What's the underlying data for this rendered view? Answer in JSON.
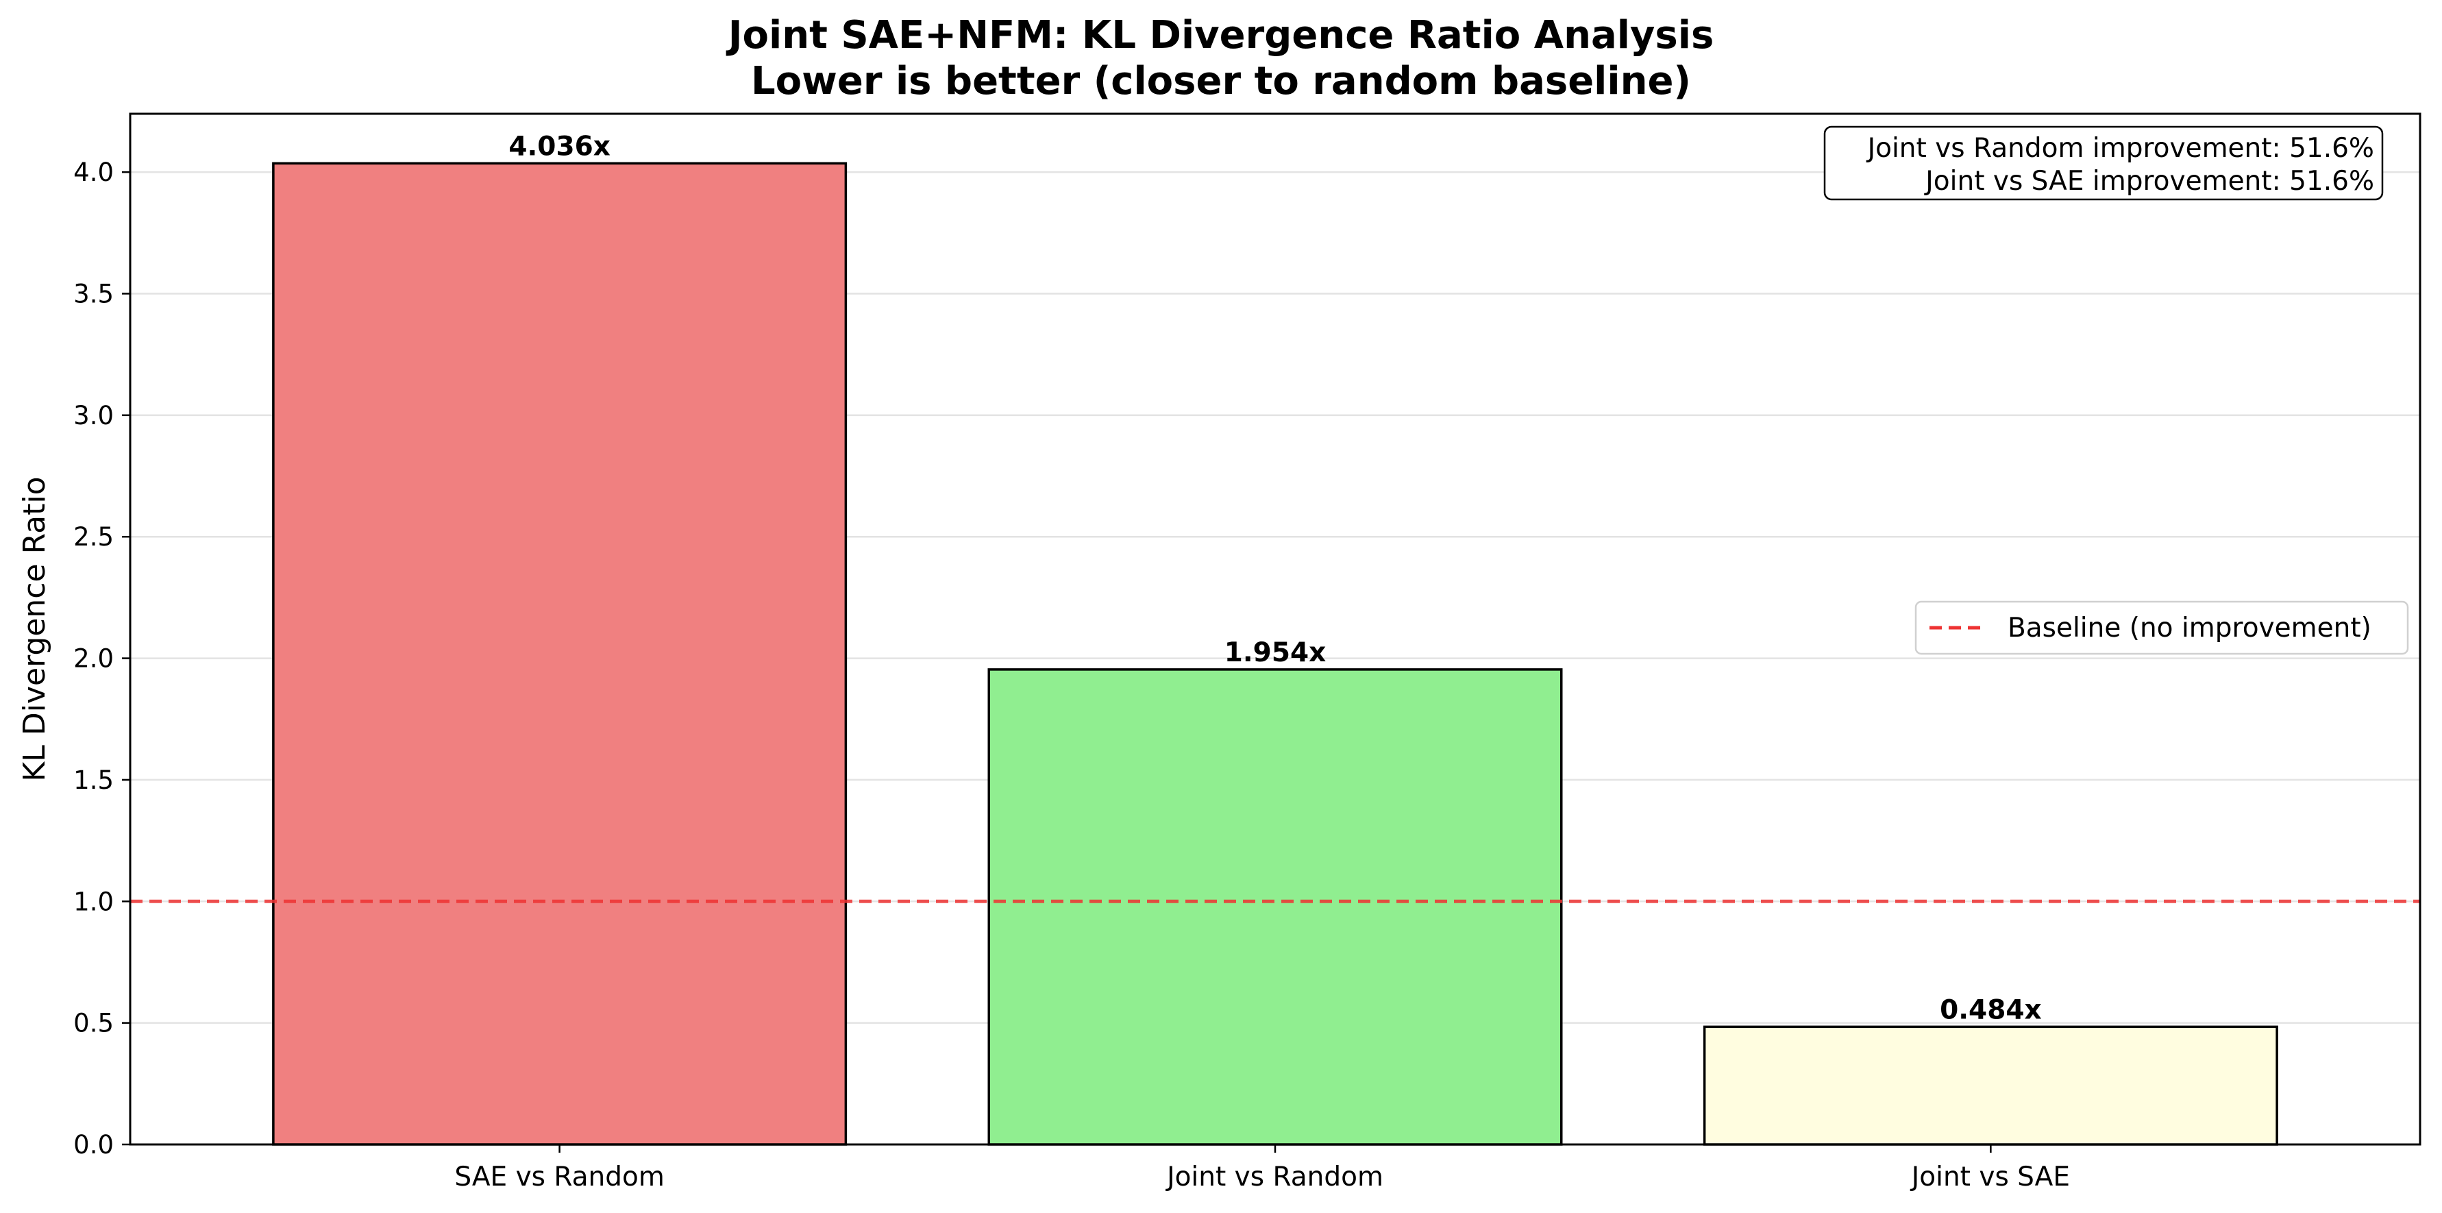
{
  "chart_data": {
    "type": "bar",
    "title": "Joint SAE+NFM: KL Divergence Ratio Analysis",
    "subtitle": "Lower is better (closer to random baseline)",
    "xlabel": "",
    "ylabel": "KL Divergence Ratio",
    "ylim": [
      0,
      4.24
    ],
    "yticks": [
      0.0,
      0.5,
      1.0,
      1.5,
      2.0,
      2.5,
      3.0,
      3.5,
      4.0
    ],
    "ytick_labels": [
      "0.0",
      "0.5",
      "1.0",
      "1.5",
      "2.0",
      "2.5",
      "3.0",
      "3.5",
      "4.0"
    ],
    "categories": [
      "SAE vs Random",
      "Joint vs Random",
      "Joint vs SAE"
    ],
    "values": [
      4.036,
      1.954,
      0.484
    ],
    "value_labels": [
      "4.036x",
      "1.954x",
      "0.484x"
    ],
    "colors": [
      "#f08080",
      "#90ee90",
      "#fffde0"
    ],
    "grid": "y",
    "baseline": {
      "value": 1.0,
      "label": "Baseline (no improvement)",
      "color": "#ee3333",
      "style": "dashed"
    },
    "legend_position": "center-right",
    "annotation": {
      "lines": [
        "Joint vs Random improvement: 51.6%",
        "Joint vs SAE improvement: 51.6%"
      ],
      "position": "top-right"
    }
  }
}
